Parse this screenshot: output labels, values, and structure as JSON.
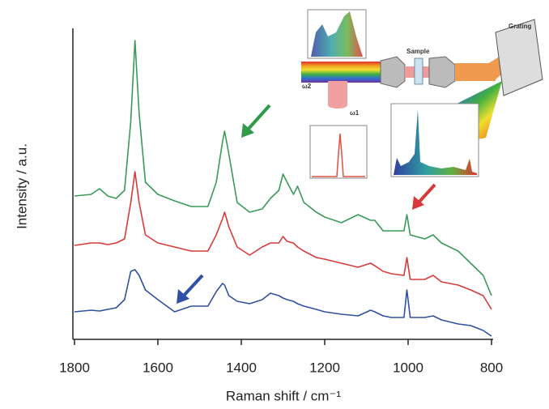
{
  "chart_data": {
    "type": "line",
    "x_label": "Raman shift / cm⁻¹",
    "y_label": "Intensity / a.u.",
    "inset_labels": [
      "Grating",
      "Sample",
      "ω2",
      "ω1"
    ],
    "x": [
      1800,
      1760,
      1740,
      1720,
      1700,
      1680,
      1665,
      1655,
      1645,
      1630,
      1600,
      1560,
      1520,
      1480,
      1460,
      1445,
      1440,
      1430,
      1410,
      1380,
      1350,
      1330,
      1310,
      1300,
      1290,
      1275,
      1265,
      1250,
      1220,
      1200,
      1160,
      1120,
      1090,
      1080,
      1060,
      1040,
      1010,
      1003,
      995,
      960,
      940,
      920,
      880,
      850,
      820,
      800
    ],
    "series": [
      {
        "color": "#3a9a5a",
        "values": [
          176,
          178,
          185,
          176,
          173,
          183,
          268,
          368,
          278,
          193,
          178,
          170,
          163,
          163,
          193,
          243,
          256,
          228,
          168,
          156,
          160,
          173,
          183,
          203,
          193,
          178,
          188,
          168,
          156,
          150,
          143,
          153,
          146,
          146,
          133,
          133,
          133,
          153,
          128,
          123,
          128,
          118,
          108,
          93,
          78,
          53
        ]
      },
      {
        "color": "#d83a3a",
        "values": [
          115,
          118,
          118,
          116,
          118,
          123,
          168,
          206,
          168,
          128,
          118,
          113,
          108,
          108,
          128,
          148,
          156,
          138,
          113,
          103,
          113,
          118,
          118,
          126,
          120,
          118,
          113,
          108,
          100,
          98,
          93,
          88,
          93,
          90,
          83,
          80,
          78,
          100,
          73,
          73,
          78,
          70,
          66,
          60,
          53,
          36
        ]
      },
      {
        "color": "#3050a0",
        "values": [
          33,
          35,
          34,
          36,
          38,
          48,
          83,
          85,
          78,
          60,
          48,
          33,
          40,
          40,
          58,
          68,
          66,
          53,
          46,
          43,
          48,
          56,
          53,
          50,
          48,
          46,
          43,
          40,
          36,
          33,
          30,
          28,
          35,
          33,
          28,
          26,
          26,
          60,
          26,
          26,
          28,
          23,
          18,
          16,
          10,
          3
        ]
      }
    ],
    "xlim": [
      1800,
      800
    ],
    "xticks": [
      1800,
      1600,
      1400,
      1200,
      1000,
      800
    ],
    "ylim": [
      0,
      383
    ]
  }
}
